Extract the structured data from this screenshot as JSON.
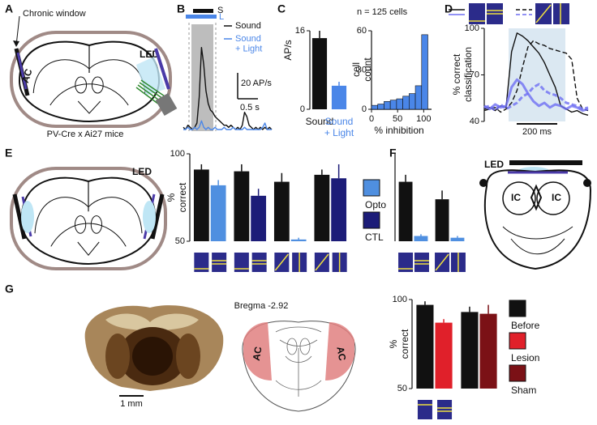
{
  "panels": [
    "A",
    "B",
    "C",
    "D",
    "E",
    "F",
    "G"
  ],
  "panel_a": {
    "callout": "Chronic window",
    "region": "AC",
    "light": "LED",
    "mouse_line": "PV-Cre x Ai27 mice"
  },
  "panel_e": {
    "light": "LED"
  },
  "panel_f": {
    "light": "LED",
    "regions": [
      "IC",
      "IC"
    ]
  },
  "panel_g": {
    "section": "Bregma -2.92",
    "scale": "1 mm",
    "regions": [
      "AC",
      "AC"
    ]
  },
  "chart_data": [
    {
      "type": "line",
      "axes": false,
      "ylim": [
        0,
        45
      ],
      "stimulus_labels": [
        "S",
        "L"
      ],
      "scale_bars": [
        "20 AP/s",
        "0.5 s"
      ],
      "series": [
        {
          "name": "Sound",
          "color": "#111111",
          "values": [
            1,
            0,
            2,
            1,
            0,
            1,
            3,
            15,
            38,
            30,
            18,
            12,
            9,
            8,
            6,
            5,
            4,
            3,
            2,
            2,
            1,
            2,
            1,
            0,
            1,
            0,
            2,
            8,
            6,
            2,
            1,
            0,
            1,
            0,
            1,
            0,
            1,
            0,
            1,
            0
          ]
        },
        {
          "name": "Sound + Light",
          "color": "#4a86e8",
          "values": [
            0,
            0,
            1,
            0,
            0,
            1,
            0,
            1,
            4,
            1,
            0,
            1,
            0,
            0,
            1,
            0,
            0,
            0,
            1,
            0,
            0,
            0,
            1,
            0,
            0,
            0,
            0,
            1,
            0,
            0,
            0,
            0,
            0,
            0,
            0,
            1,
            3,
            0,
            0,
            0
          ]
        }
      ]
    },
    {
      "type": "bar",
      "ylabel": "AP/s",
      "categories": [
        "Sound",
        "Sound + Light"
      ],
      "ylim": [
        0,
        16
      ],
      "yticks": [
        0,
        16
      ],
      "series": [
        {
          "values": [
            14.5,
            4.8
          ],
          "errors": [
            1.5,
            0.8
          ],
          "colors": [
            "#111111",
            "#4a86e8"
          ]
        }
      ]
    },
    {
      "type": "hist",
      "title": "n = 125 cells",
      "ylabel": "cell count",
      "xlabel": "% inhibition",
      "color": "#4a86e8",
      "bins": [
        0,
        12,
        24,
        36,
        48,
        60,
        72,
        84,
        96,
        108
      ],
      "counts": [
        3,
        4,
        6,
        7,
        8,
        10,
        12,
        18,
        57
      ],
      "xlim": [
        0,
        115
      ],
      "xticks": [
        0,
        50,
        100
      ],
      "ylim": [
        0,
        60
      ],
      "yticks": [
        0,
        30,
        60
      ]
    },
    {
      "type": "line",
      "ylabel": "% correct classification",
      "scale_bar": "200 ms",
      "ylim": [
        40,
        100
      ],
      "yticks": [
        40,
        70,
        100
      ],
      "series": [
        {
          "color": "#111111",
          "dash": false,
          "values": [
            48,
            49,
            47,
            50,
            49,
            85,
            97,
            95,
            92,
            88,
            84,
            78,
            70,
            62,
            50,
            48,
            46,
            47,
            45,
            44
          ]
        },
        {
          "color": "#111111",
          "dash": true,
          "values": [
            47,
            48,
            49,
            46,
            48,
            52,
            60,
            75,
            88,
            92,
            90,
            89,
            87,
            86,
            85,
            84,
            80,
            55,
            48,
            47
          ]
        },
        {
          "color": "#6e6ef2",
          "dash": false,
          "values": [
            50,
            48,
            51,
            49,
            50,
            62,
            67,
            64,
            58,
            53,
            50,
            52,
            49,
            51,
            50,
            48,
            50,
            49,
            47,
            48
          ]
        },
        {
          "color": "#6e6ef2",
          "dash": true,
          "values": [
            49,
            50,
            47,
            51,
            48,
            50,
            52,
            56,
            58,
            62,
            64,
            60,
            58,
            57,
            55,
            52,
            51,
            50,
            48,
            49
          ]
        }
      ]
    },
    {
      "type": "bar",
      "ylabel": "% correct",
      "categories": [
        null,
        null,
        null,
        null
      ],
      "ylim": [
        50,
        100
      ],
      "yticks": [
        50,
        100
      ],
      "series": [
        {
          "values": [
            91,
            90,
            84,
            88
          ],
          "errors": [
            3,
            4,
            5,
            3
          ],
          "colors": [
            "#111111",
            "#111111",
            "#111111",
            "#111111"
          ]
        },
        {
          "values": [
            82,
            76,
            51,
            86
          ],
          "errors": [
            3,
            4,
            1,
            8
          ],
          "colors": [
            "#4f8fe0",
            "#1c1c78",
            "#4f8fe0",
            "#1c1c78"
          ]
        }
      ],
      "legend": [
        {
          "name": "Opto",
          "color": "#4f8fe0"
        },
        {
          "name": "CTL",
          "color": "#1c1c78"
        }
      ]
    },
    {
      "type": "bar",
      "categories": [
        null,
        null
      ],
      "ylim": [
        50,
        100
      ],
      "series": [
        {
          "values": [
            84,
            74
          ],
          "errors": [
            4,
            5
          ],
          "colors": [
            "#111111",
            "#111111"
          ]
        },
        {
          "values": [
            53,
            52
          ],
          "errors": [
            1,
            1
          ],
          "colors": [
            "#4f8fe0",
            "#4f8fe0"
          ]
        }
      ]
    },
    {
      "type": "bar",
      "ylabel": "% correct",
      "categories": [
        null,
        null
      ],
      "ylim": [
        50,
        100
      ],
      "yticks": [
        50,
        100
      ],
      "series": [
        {
          "values": [
            97,
            93
          ],
          "errors": [
            2,
            3
          ],
          "colors": [
            "#111111",
            "#111111"
          ]
        },
        {
          "values": [
            87,
            92
          ],
          "errors": [
            2,
            5
          ],
          "colors": [
            "#e0202a",
            "#7b1116"
          ]
        }
      ],
      "legend": [
        {
          "name": "Before",
          "color": "#111111"
        },
        {
          "name": "Lesion",
          "color": "#e0202a"
        },
        {
          "name": "Sham",
          "color": "#7b1116"
        }
      ]
    }
  ]
}
